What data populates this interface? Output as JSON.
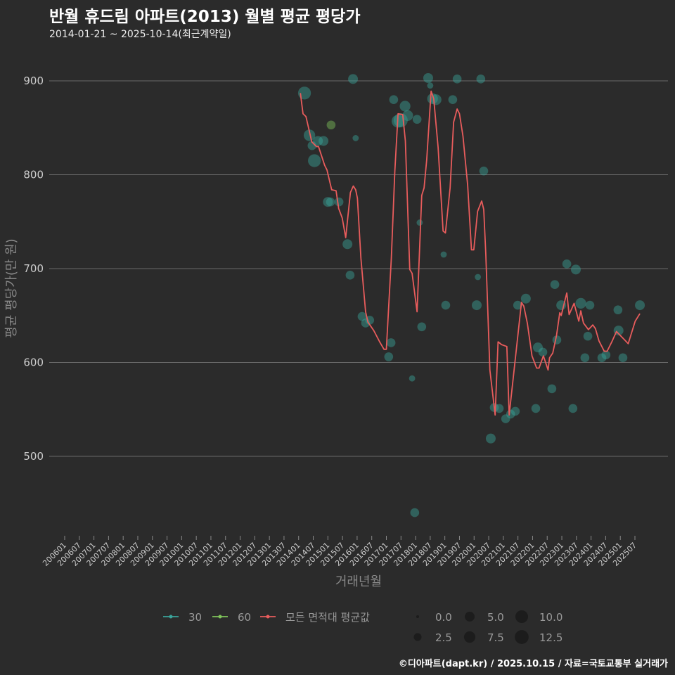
{
  "title": "반월 휴드림 아파트(2013) 월별 평균 평당가",
  "subtitle": "2014-01-21 ~ 2025-10-14(최근계약일)",
  "footer": "©디아파트(dapt.kr) / 2025.10.15 / 자료=국토교통부 실거래가",
  "colors": {
    "background": "#2b2b2b",
    "line": "#e85c5c",
    "area30": "#3aa39a",
    "area60": "#7fc35a",
    "grid": "#6a6a6a"
  },
  "chart_data": {
    "type": "scatter+line",
    "title": "반월 휴드림 아파트(2013) 월별 평균 평당가",
    "xlabel": "거래년월",
    "ylabel": "평균 평당가(만 원)",
    "ylim": [
      415,
      935
    ],
    "xlim": [
      2005.85,
      2026.0
    ],
    "yticks": [
      500,
      600,
      700,
      800,
      900
    ],
    "xtick_labels": [
      "200601",
      "200607",
      "200701",
      "200707",
      "200801",
      "200807",
      "200901",
      "200907",
      "201001",
      "201007",
      "201101",
      "201107",
      "201201",
      "201207",
      "201301",
      "201307",
      "201401",
      "201407",
      "201501",
      "201507",
      "201601",
      "201607",
      "201701",
      "201707",
      "201801",
      "201807",
      "201901",
      "201907",
      "202001",
      "202007",
      "202101",
      "202107",
      "202201",
      "202207",
      "202301",
      "202307",
      "202401",
      "202407",
      "202501",
      "202507"
    ],
    "grid": true,
    "legend": {
      "position": "bottom",
      "series_labels": [
        "30",
        "60",
        "모든 면적대 평균값"
      ],
      "size_labels": [
        "0.0",
        "2.5",
        "5.0",
        "7.5",
        "10.0",
        "12.5"
      ],
      "size_values": [
        0,
        2.5,
        5,
        7.5,
        10,
        12.5
      ]
    },
    "line_series": {
      "name": "모든 면적대 평균값",
      "points": [
        [
          2014.06,
          887
        ],
        [
          2014.15,
          865
        ],
        [
          2014.25,
          862
        ],
        [
          2014.45,
          835
        ],
        [
          2014.61,
          830
        ],
        [
          2014.68,
          830
        ],
        [
          2014.89,
          810
        ],
        [
          2014.97,
          805
        ],
        [
          2015.13,
          784
        ],
        [
          2015.28,
          783
        ],
        [
          2015.37,
          764
        ],
        [
          2015.49,
          754
        ],
        [
          2015.61,
          733
        ],
        [
          2015.77,
          781
        ],
        [
          2015.87,
          788
        ],
        [
          2015.95,
          784
        ],
        [
          2016.01,
          775
        ],
        [
          2016.13,
          711
        ],
        [
          2016.29,
          654
        ],
        [
          2016.37,
          643
        ],
        [
          2016.57,
          634
        ],
        [
          2016.77,
          622
        ],
        [
          2016.92,
          614
        ],
        [
          2017.0,
          614
        ],
        [
          2017.17,
          711
        ],
        [
          2017.29,
          804
        ],
        [
          2017.4,
          865
        ],
        [
          2017.56,
          864
        ],
        [
          2017.65,
          836
        ],
        [
          2017.8,
          699
        ],
        [
          2017.88,
          695
        ],
        [
          2018.05,
          654
        ],
        [
          2018.21,
          778
        ],
        [
          2018.29,
          786
        ],
        [
          2018.38,
          816
        ],
        [
          2018.53,
          889
        ],
        [
          2018.62,
          881
        ],
        [
          2018.77,
          829
        ],
        [
          2018.94,
          740
        ],
        [
          2019.02,
          738
        ],
        [
          2019.18,
          786
        ],
        [
          2019.3,
          856
        ],
        [
          2019.42,
          870
        ],
        [
          2019.5,
          865
        ],
        [
          2019.62,
          841
        ],
        [
          2019.78,
          789
        ],
        [
          2019.91,
          720
        ],
        [
          2019.99,
          720
        ],
        [
          2020.12,
          761
        ],
        [
          2020.26,
          772
        ],
        [
          2020.33,
          763
        ],
        [
          2020.4,
          716
        ],
        [
          2020.54,
          592
        ],
        [
          2020.72,
          544
        ],
        [
          2020.82,
          622
        ],
        [
          2020.94,
          619
        ],
        [
          2021.12,
          617
        ],
        [
          2021.2,
          544
        ],
        [
          2021.62,
          664
        ],
        [
          2021.7,
          660
        ],
        [
          2021.82,
          642
        ],
        [
          2021.98,
          607
        ],
        [
          2022.14,
          594
        ],
        [
          2022.22,
          594
        ],
        [
          2022.37,
          607
        ],
        [
          2022.53,
          592
        ],
        [
          2022.58,
          605
        ],
        [
          2022.69,
          610
        ],
        [
          2022.82,
          629
        ],
        [
          2022.93,
          653
        ],
        [
          2022.98,
          650
        ],
        [
          2023.17,
          674
        ],
        [
          2023.25,
          651
        ],
        [
          2023.42,
          663
        ],
        [
          2023.58,
          644
        ],
        [
          2023.65,
          655
        ],
        [
          2023.74,
          642
        ],
        [
          2023.91,
          635
        ],
        [
          2024.06,
          640
        ],
        [
          2024.15,
          636
        ],
        [
          2024.27,
          623
        ],
        [
          2024.45,
          612
        ],
        [
          2024.55,
          612
        ],
        [
          2024.71,
          622
        ],
        [
          2024.87,
          633
        ],
        [
          2025.15,
          624
        ],
        [
          2025.27,
          620
        ],
        [
          2025.36,
          629
        ],
        [
          2025.51,
          644
        ],
        [
          2025.67,
          652
        ]
      ]
    },
    "scatter_series": [
      {
        "name": "30",
        "points": [
          [
            2014.2,
            887,
            8
          ],
          [
            2014.37,
            842,
            6
          ],
          [
            2014.46,
            831,
            3
          ],
          [
            2014.54,
            815,
            8
          ],
          [
            2014.66,
            836,
            4
          ],
          [
            2014.85,
            836,
            4
          ],
          [
            2015.0,
            771,
            4
          ],
          [
            2015.09,
            771,
            3
          ],
          [
            2015.38,
            771,
            3
          ],
          [
            2015.67,
            726,
            4
          ],
          [
            2015.76,
            693,
            3
          ],
          [
            2015.86,
            902,
            4
          ],
          [
            2015.95,
            839,
            1
          ],
          [
            2016.17,
            649,
            3
          ],
          [
            2016.29,
            642,
            3
          ],
          [
            2016.43,
            645,
            3
          ],
          [
            2017.08,
            606,
            3
          ],
          [
            2017.16,
            621,
            3
          ],
          [
            2017.25,
            880,
            3
          ],
          [
            2017.4,
            857,
            8
          ],
          [
            2017.49,
            858,
            10
          ],
          [
            2017.64,
            873,
            5
          ],
          [
            2017.73,
            863,
            5
          ],
          [
            2017.88,
            583,
            1
          ],
          [
            2017.97,
            440,
            3
          ],
          [
            2018.05,
            859,
            3
          ],
          [
            2018.14,
            749,
            1
          ],
          [
            2018.21,
            638,
            3
          ],
          [
            2018.43,
            903,
            4
          ],
          [
            2018.5,
            895,
            1
          ],
          [
            2018.58,
            881,
            5
          ],
          [
            2018.7,
            880,
            5
          ],
          [
            2018.96,
            715,
            1
          ],
          [
            2019.03,
            661,
            3
          ],
          [
            2019.27,
            880,
            3
          ],
          [
            2019.42,
            902,
            3
          ],
          [
            2020.09,
            661,
            4
          ],
          [
            2020.13,
            691,
            1
          ],
          [
            2020.23,
            902,
            3
          ],
          [
            2020.33,
            804,
            3
          ],
          [
            2020.57,
            519,
            4
          ],
          [
            2020.69,
            552,
            3
          ],
          [
            2020.86,
            551,
            3
          ],
          [
            2021.08,
            540,
            3
          ],
          [
            2021.25,
            545,
            3
          ],
          [
            2021.41,
            548,
            3
          ],
          [
            2021.49,
            661,
            3
          ],
          [
            2021.77,
            668,
            4
          ],
          [
            2022.11,
            551,
            3
          ],
          [
            2022.18,
            616,
            4
          ],
          [
            2022.35,
            611,
            3
          ],
          [
            2022.66,
            572,
            3
          ],
          [
            2022.76,
            683,
            3
          ],
          [
            2022.83,
            624,
            3
          ],
          [
            2022.98,
            661,
            4
          ],
          [
            2023.17,
            705,
            3
          ],
          [
            2023.38,
            551,
            3
          ],
          [
            2023.48,
            699,
            4
          ],
          [
            2023.65,
            663,
            5
          ],
          [
            2023.79,
            605,
            3
          ],
          [
            2023.89,
            628,
            3
          ],
          [
            2023.96,
            661,
            3
          ],
          [
            2024.37,
            605,
            3
          ],
          [
            2024.51,
            608,
            3
          ],
          [
            2024.92,
            656,
            3
          ],
          [
            2024.94,
            634,
            4
          ],
          [
            2025.09,
            605,
            3
          ],
          [
            2025.67,
            661,
            4
          ]
        ]
      },
      {
        "name": "60",
        "points": [
          [
            2015.11,
            853,
            3
          ]
        ]
      }
    ]
  }
}
